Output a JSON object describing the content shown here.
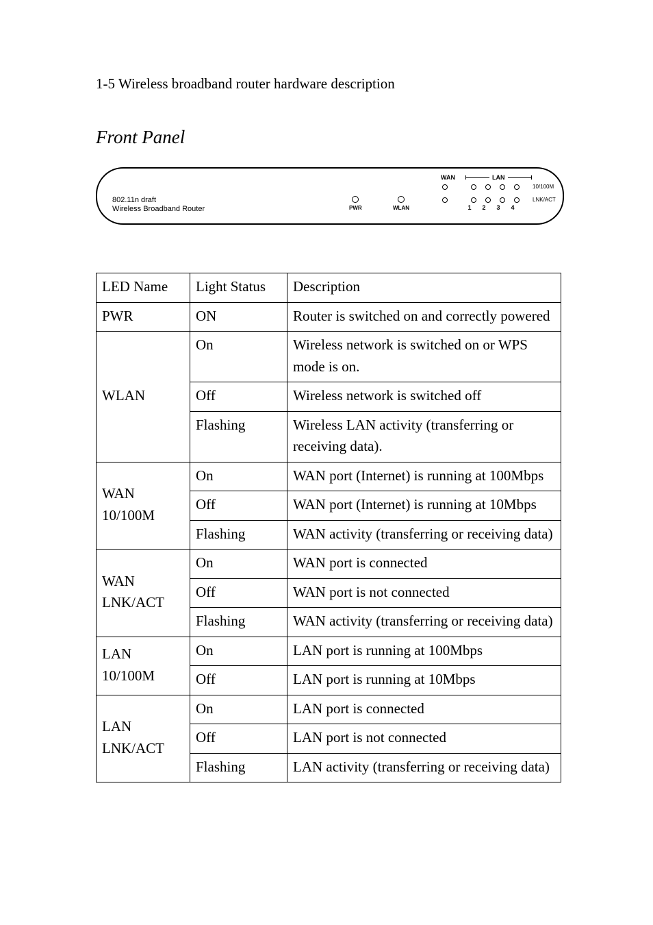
{
  "section_title": "1-5 Wireless broadband router hardware description",
  "front_panel_heading": "Front Panel",
  "panel": {
    "brand_line1": "802.11n draft",
    "brand_line2": "Wireless Broadband Router",
    "single_leds": [
      {
        "label": "PWR"
      },
      {
        "label": "WLAN"
      }
    ],
    "wan_label": "WAN",
    "lan_label": "LAN",
    "row_labels": {
      "top": "10/100M",
      "bottom": "LNK/ACT"
    },
    "lan_numbers": [
      "1",
      "2",
      "3",
      "4"
    ],
    "colors": {
      "stroke": "#000000",
      "bg": "#ffffff"
    }
  },
  "table": {
    "headers": [
      "LED Name",
      "Light Status",
      "Description"
    ],
    "groups": [
      {
        "name": "PWR",
        "rows": [
          {
            "status": "ON",
            "desc": "Router is switched on and correctly powered"
          }
        ]
      },
      {
        "name": "WLAN",
        "rows": [
          {
            "status": "On",
            "desc": "Wireless network is switched on or WPS mode is on."
          },
          {
            "status": "Off",
            "desc": "Wireless network is switched off"
          },
          {
            "status": "Flashing",
            "desc": "Wireless LAN activity (transferring or receiving data)."
          }
        ]
      },
      {
        "name": "WAN 10/100M",
        "rows": [
          {
            "status": "On",
            "desc": "WAN port (Internet) is running at 100Mbps"
          },
          {
            "status": "Off",
            "desc": "WAN port (Internet) is running at 10Mbps"
          },
          {
            "status": "Flashing",
            "desc": "WAN activity (transferring or receiving data)"
          }
        ]
      },
      {
        "name": "WAN LNK/ACT",
        "rows": [
          {
            "status": "On",
            "desc": "WAN port is connected"
          },
          {
            "status": "Off",
            "desc": "WAN port is not connected"
          },
          {
            "status": "Flashing",
            "desc": "WAN activity (transferring or receiving data)"
          }
        ]
      },
      {
        "name": "LAN 10/100M",
        "rows": [
          {
            "status": "On",
            "desc": "LAN port is running at 100Mbps"
          },
          {
            "status": "Off",
            "desc": "LAN port is running at 10Mbps"
          }
        ]
      },
      {
        "name": "LAN LNK/ACT",
        "rows": [
          {
            "status": "On",
            "desc": "LAN port is connected"
          },
          {
            "status": "Off",
            "desc": "LAN port is not connected"
          },
          {
            "status": "Flashing",
            "desc": "LAN activity (transferring or receiving data)"
          }
        ]
      }
    ]
  }
}
